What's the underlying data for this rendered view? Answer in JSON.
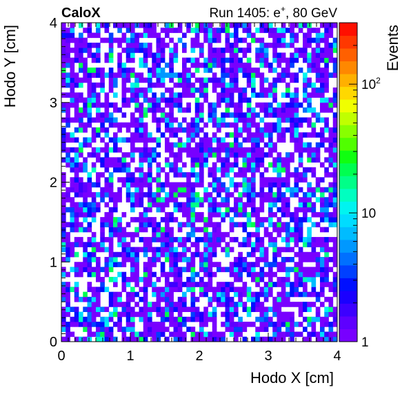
{
  "chart_data": {
    "type": "heatmap",
    "title_left": "CaloX",
    "title_right_prefix": "Run 1405: e",
    "title_right_superscript": "+",
    "title_right_suffix": ", 80 GeV",
    "xlabel": "Hodo X [cm]",
    "ylabel": "Hodo Y [cm]",
    "zlabel": "Events",
    "xlim": [
      0,
      4.0
    ],
    "ylim": [
      0,
      4.0
    ],
    "z_scale": "log",
    "zlim": [
      1,
      300
    ],
    "x_ticks": [
      "0",
      "1",
      "2",
      "3",
      "4"
    ],
    "y_ticks": [
      "0",
      "1",
      "2",
      "3",
      "4"
    ],
    "z_ticks": [
      {
        "value": 1,
        "base": "1",
        "exp": ""
      },
      {
        "value": 10,
        "base": "10",
        "exp": ""
      },
      {
        "value": 100,
        "base": "10",
        "exp": "2"
      }
    ],
    "bins": {
      "nx": 64,
      "ny": 64
    },
    "bin_content": "Sparse, roughly uniform occupancy of about 1 to 10 events per bin across the full 4 x 4 cm hodoscope area; roughly one third of the bins are empty.",
    "palette": [
      "#7800ff",
      "#5e00ff",
      "#3c00ff",
      "#1a00ff",
      "#0010ff",
      "#0040ff",
      "#0070ff",
      "#0098ff",
      "#00bcff",
      "#00dcff",
      "#00f4f0",
      "#00ffc0",
      "#00ff88",
      "#00ff50",
      "#10ff10",
      "#50ff00",
      "#88ff00",
      "#c0ff00",
      "#f0ff00",
      "#ffd800",
      "#ffb000",
      "#ff8800",
      "#ff6000",
      "#ff3800",
      "#ff1000"
    ]
  }
}
